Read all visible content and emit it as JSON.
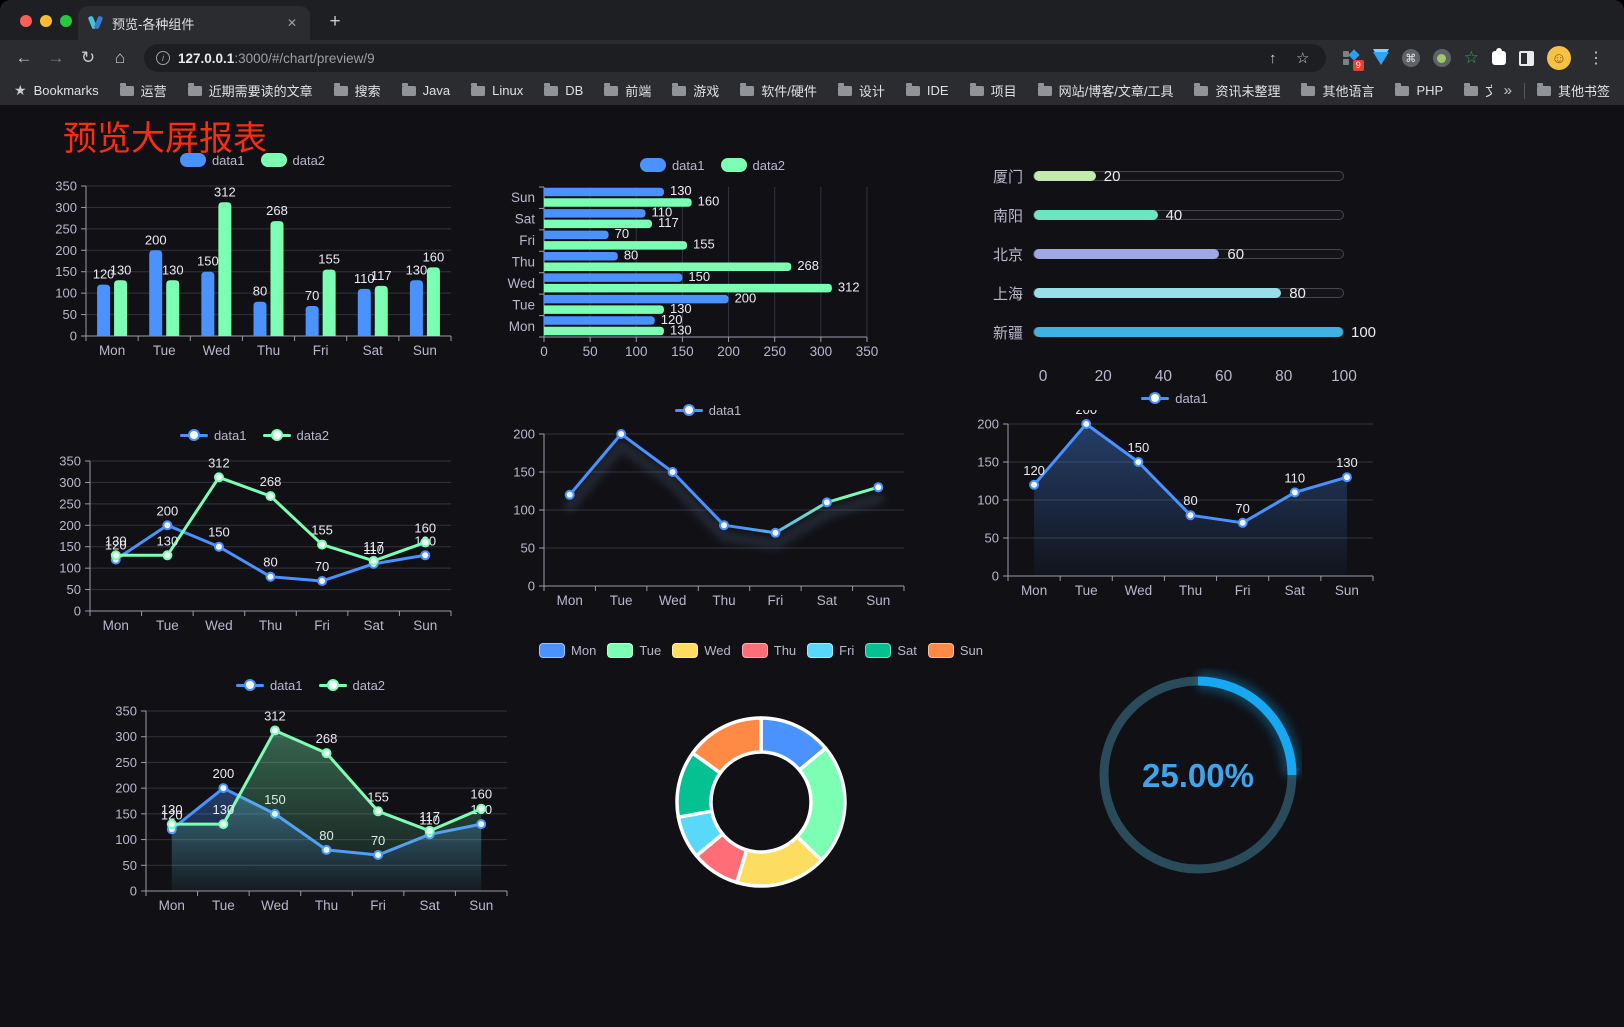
{
  "browser": {
    "tab_title": "预览-各种组件",
    "url_host": "127.0.0.1",
    "url_rest": ":3000/#/chart/preview/9",
    "badge": "9",
    "bookmarks_title": "Bookmarks",
    "folders": [
      "运营",
      "近期需要读的文章",
      "搜索",
      "Java",
      "Linux",
      "DB",
      "前端",
      "游戏",
      "软件/硬件",
      "设计",
      "IDE",
      "项目",
      "网站/博客/文章/工具",
      "资讯未整理",
      "其他语言",
      "PHP",
      "文件服务器"
    ],
    "chevron": "»",
    "other_bookmarks": "其他书签",
    "glyphs": {
      "back": "←",
      "forward": "→",
      "reload": "↻",
      "home": "⌂",
      "info": "i",
      "share": "↑",
      "star": "☆",
      "close": "✕",
      "new_tab": "+",
      "menu": "⋮",
      "cmd": "⌘",
      "green_star": "☆",
      "smile": "☺",
      "bookmarks_star": "★"
    }
  },
  "page": {
    "title": "预览大屏报表",
    "title_color": "#fb2d10"
  },
  "chart_data": [
    {
      "id": "grouped-bar",
      "type": "bar",
      "legend": [
        "data1",
        "data2"
      ],
      "legend_position": "top",
      "categories": [
        "Mon",
        "Tue",
        "Wed",
        "Thu",
        "Fri",
        "Sat",
        "Sun"
      ],
      "series": [
        {
          "name": "data1",
          "color": "#4992ff",
          "values": [
            120,
            200,
            150,
            80,
            70,
            110,
            130
          ]
        },
        {
          "name": "data2",
          "color": "#7cffb2",
          "values": [
            130,
            130,
            312,
            268,
            155,
            117,
            160
          ]
        }
      ],
      "ylim": [
        0,
        350
      ],
      "ytick": 50,
      "grid": true,
      "point_labels": true
    },
    {
      "id": "grouped-bar-horizontal",
      "type": "bar-horizontal",
      "legend": [
        "data1",
        "data2"
      ],
      "legend_position": "top",
      "categories": [
        "Mon",
        "Tue",
        "Wed",
        "Thu",
        "Fri",
        "Sat",
        "Sun"
      ],
      "display_order": "Sun-at-top",
      "series": [
        {
          "name": "data1",
          "color": "#4992ff",
          "values": [
            120,
            200,
            150,
            80,
            70,
            110,
            130
          ]
        },
        {
          "name": "data2",
          "color": "#7cffb2",
          "values": [
            130,
            130,
            312,
            268,
            155,
            117,
            160
          ]
        }
      ],
      "xlim": [
        0,
        350
      ],
      "xtick": 50,
      "grid": true,
      "point_labels": true
    },
    {
      "id": "city-progress",
      "type": "progress",
      "rows": [
        {
          "label": "厦门",
          "value": 20,
          "color": "#c4ebad"
        },
        {
          "label": "南阳",
          "value": 40,
          "color": "#6be6c1"
        },
        {
          "label": "北京",
          "value": 60,
          "color": "#a0a7e6"
        },
        {
          "label": "上海",
          "value": 80,
          "color": "#96dee8"
        },
        {
          "label": "新疆",
          "value": 100,
          "color": "#3fb1e3"
        }
      ],
      "xlim": [
        0,
        100
      ],
      "xticks": [
        0,
        20,
        40,
        60,
        80,
        100
      ]
    },
    {
      "id": "two-line",
      "type": "line",
      "legend": [
        "data1",
        "data2"
      ],
      "legend_position": "top",
      "categories": [
        "Mon",
        "Tue",
        "Wed",
        "Thu",
        "Fri",
        "Sat",
        "Sun"
      ],
      "series": [
        {
          "name": "data1",
          "color": "#4992ff",
          "values": [
            120,
            200,
            150,
            80,
            70,
            110,
            130
          ]
        },
        {
          "name": "data2",
          "color": "#7cffb2",
          "values": [
            130,
            130,
            312,
            268,
            155,
            117,
            160
          ]
        }
      ],
      "ylim": [
        0,
        350
      ],
      "ytick": 50,
      "grid": true,
      "point_labels": true
    },
    {
      "id": "gradient-line",
      "type": "line",
      "legend": [
        "data1"
      ],
      "legend_position": "top",
      "categories": [
        "Mon",
        "Tue",
        "Wed",
        "Thu",
        "Fri",
        "Sat",
        "Sun"
      ],
      "series": [
        {
          "name": "data1",
          "color": "#4992ff",
          "color_gradient": [
            "#4992ff",
            "#7cffb2"
          ],
          "values": [
            120,
            200,
            150,
            80,
            70,
            110,
            130
          ],
          "shadow": true
        }
      ],
      "ylim": [
        0,
        200
      ],
      "ytick": 50,
      "grid": true,
      "point_labels": false
    },
    {
      "id": "area-single",
      "type": "area",
      "legend": [
        "data1"
      ],
      "legend_position": "top",
      "categories": [
        "Mon",
        "Tue",
        "Wed",
        "Thu",
        "Fri",
        "Sat",
        "Sun"
      ],
      "series": [
        {
          "name": "data1",
          "color": "#4992ff",
          "values": [
            120,
            200,
            150,
            80,
            70,
            110,
            130
          ]
        }
      ],
      "ylim": [
        0,
        200
      ],
      "ytick": 50,
      "grid": true,
      "point_labels": true
    },
    {
      "id": "two-area",
      "type": "area",
      "legend": [
        "data1",
        "data2"
      ],
      "legend_position": "top",
      "categories": [
        "Mon",
        "Tue",
        "Wed",
        "Thu",
        "Fri",
        "Sat",
        "Sun"
      ],
      "series": [
        {
          "name": "data1",
          "color": "#4992ff",
          "values": [
            120,
            200,
            150,
            80,
            70,
            110,
            130
          ]
        },
        {
          "name": "data2",
          "color": "#7cffb2",
          "values": [
            130,
            130,
            312,
            268,
            155,
            117,
            160
          ]
        }
      ],
      "ylim": [
        0,
        350
      ],
      "ytick": 50,
      "grid": true,
      "point_labels": true
    },
    {
      "id": "donut",
      "type": "pie",
      "legend_position": "top",
      "inner_radius_ratio": 0.6,
      "categories": [
        "Mon",
        "Tue",
        "Wed",
        "Thu",
        "Fri",
        "Sat",
        "Sun"
      ],
      "values": [
        120,
        200,
        150,
        80,
        70,
        110,
        130
      ],
      "colors": [
        "#4992ff",
        "#7cffb2",
        "#fddd60",
        "#ff6e76",
        "#58d9f9",
        "#05c091",
        "#ff8a45"
      ],
      "border_color": "#ffffff"
    },
    {
      "id": "gauge",
      "type": "gauge",
      "value": 25,
      "label": "25.00%",
      "arc_color": "#17a8f4",
      "track_color": "#2a4b59",
      "text_color": "#3fa4ec"
    }
  ]
}
